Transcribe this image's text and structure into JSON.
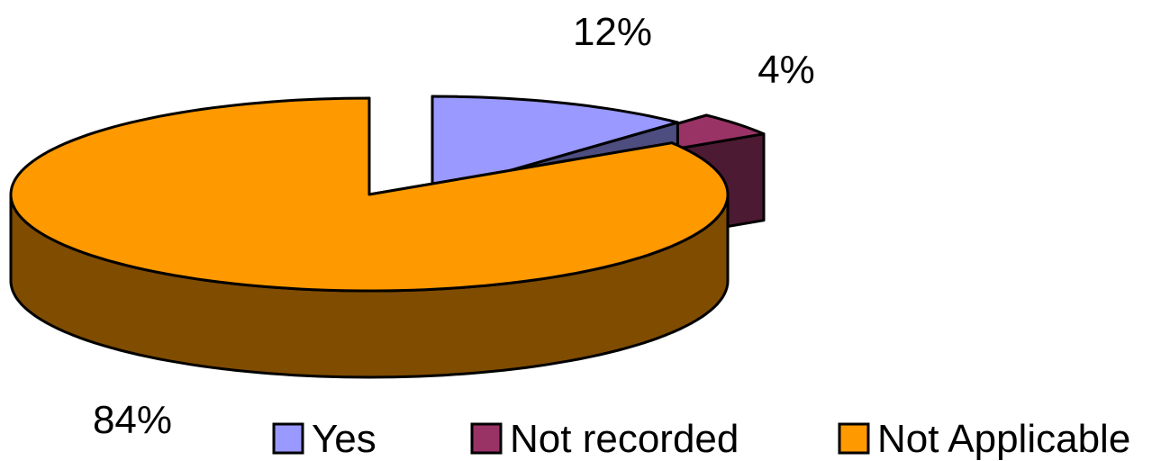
{
  "chart_data": {
    "type": "pie",
    "title": "",
    "categories": [
      "Yes",
      "Not recorded",
      "Not Applicable"
    ],
    "values": [
      12,
      4,
      84
    ],
    "data_labels": [
      "12%",
      "4%",
      "84%"
    ],
    "colors": {
      "top": [
        "#9999FF",
        "#993366",
        "#FF9900"
      ],
      "side": [
        "#4D4D80",
        "#4D1A33",
        "#804C00"
      ],
      "outline": "#000000"
    },
    "three_d": true,
    "exploded": true,
    "legend": {
      "position": "bottom-right",
      "entries": [
        "Yes",
        "Not recorded",
        "Not Applicable"
      ]
    }
  }
}
